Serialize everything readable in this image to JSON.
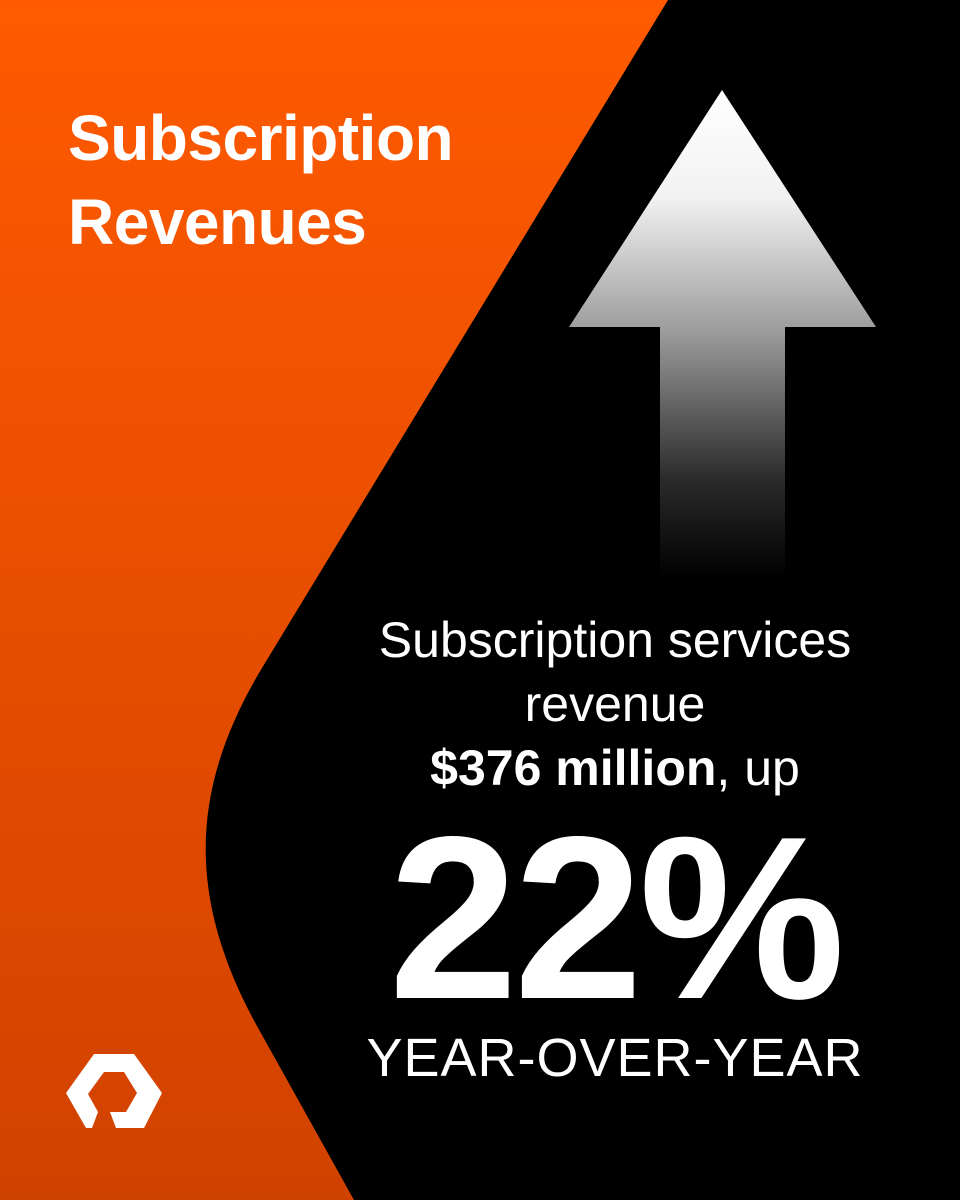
{
  "title": {
    "line1": "Subscription",
    "line2": "Revenues"
  },
  "stat": {
    "line1": "Subscription services",
    "line2": "revenue",
    "amount": "$376 million",
    "amount_suffix": ", up",
    "percent": "22%",
    "period": "YEAR-OVER-YEAR"
  },
  "colors": {
    "orange_top": "#FF5A00",
    "orange_bottom": "#D04200",
    "dark": "#000000",
    "text": "#FFFFFF"
  },
  "icons": {
    "arrow": "up-arrow-icon",
    "logo": "brand-logo-icon"
  }
}
